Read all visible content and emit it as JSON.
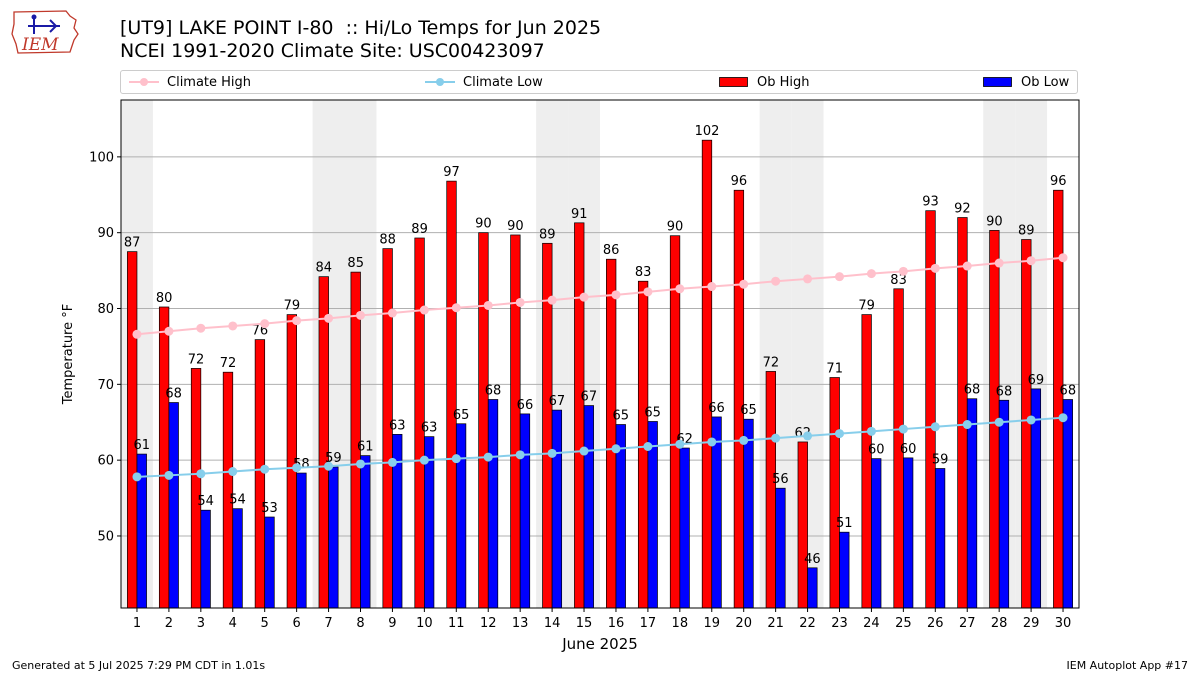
{
  "header": {
    "title_line1": "[UT9] LAKE POINT I-80  :: Hi/Lo Temps for Jun 2025",
    "title_line2": "NCEI 1991-2020 Climate Site: USC00423097",
    "logo_text": "IEM"
  },
  "legend": {
    "items": [
      {
        "label": "Climate High",
        "color": "#ffc0cb",
        "kind": "line"
      },
      {
        "label": "Climate Low",
        "color": "#87ceeb",
        "kind": "line"
      },
      {
        "label": "Ob High",
        "color": "#ff0000",
        "kind": "bar"
      },
      {
        "label": "Ob Low",
        "color": "#0000ff",
        "kind": "bar"
      }
    ]
  },
  "footer": {
    "left": "Generated at 5 Jul 2025 7:29 PM CDT in 1.01s",
    "right": "IEM Autoplot App #17"
  },
  "chart_data": {
    "type": "bar",
    "xlabel": "June 2025",
    "ylabel": "Temperature °F",
    "ylim": [
      40.5,
      107.5
    ],
    "yticks": [
      50,
      60,
      70,
      80,
      90,
      100
    ],
    "grid": "horizontal",
    "legend_position": "top",
    "weekend_shading_days": [
      1,
      7,
      8,
      14,
      15,
      21,
      22,
      28,
      29
    ],
    "categories": [
      1,
      2,
      3,
      4,
      5,
      6,
      7,
      8,
      9,
      10,
      11,
      12,
      13,
      14,
      15,
      16,
      17,
      18,
      19,
      20,
      21,
      22,
      23,
      24,
      25,
      26,
      27,
      28,
      29,
      30
    ],
    "series": [
      {
        "name": "Ob High",
        "type": "bar",
        "color": "#ff0000",
        "values": [
          87,
          80,
          72,
          72,
          76,
          79,
          84,
          85,
          88,
          89,
          97,
          90,
          90,
          89,
          91,
          86,
          83,
          90,
          102,
          96,
          72,
          62,
          71,
          79,
          83,
          93,
          92,
          90,
          89,
          96
        ],
        "bar_tops": [
          87.5,
          80.2,
          72.1,
          71.6,
          75.9,
          79.2,
          84.2,
          84.8,
          87.9,
          89.3,
          96.8,
          90.0,
          89.7,
          88.6,
          91.3,
          86.5,
          83.6,
          89.6,
          102.2,
          95.6,
          71.7,
          62.4,
          70.9,
          79.2,
          82.6,
          92.9,
          92.0,
          90.3,
          89.1,
          95.6
        ]
      },
      {
        "name": "Ob Low",
        "type": "bar",
        "color": "#0000ff",
        "values": [
          61,
          68,
          54,
          54,
          53,
          58,
          59,
          61,
          63,
          63,
          65,
          68,
          66,
          67,
          67,
          65,
          65,
          62,
          66,
          65,
          56,
          46,
          51,
          60,
          60,
          59,
          68,
          68,
          69,
          68
        ],
        "bar_tops": [
          60.8,
          67.6,
          53.4,
          53.6,
          52.5,
          58.3,
          59.1,
          60.6,
          63.4,
          63.1,
          64.8,
          68.0,
          66.1,
          66.6,
          67.2,
          64.7,
          65.1,
          61.6,
          65.7,
          65.4,
          56.3,
          45.8,
          50.5,
          60.2,
          60.3,
          58.9,
          68.1,
          67.9,
          69.4,
          68.0
        ]
      },
      {
        "name": "Climate High",
        "type": "line",
        "color": "#ffc0cb",
        "values": [
          76.6,
          77.0,
          77.4,
          77.7,
          78.0,
          78.4,
          78.7,
          79.1,
          79.4,
          79.8,
          80.1,
          80.4,
          80.8,
          81.1,
          81.5,
          81.8,
          82.2,
          82.6,
          82.9,
          83.2,
          83.6,
          83.9,
          84.2,
          84.6,
          84.9,
          85.3,
          85.6,
          86.0,
          86.3,
          86.7
        ]
      },
      {
        "name": "Climate Low",
        "type": "line",
        "color": "#87ceeb",
        "values": [
          57.8,
          58.0,
          58.2,
          58.5,
          58.8,
          59.0,
          59.2,
          59.5,
          59.7,
          60.0,
          60.2,
          60.4,
          60.7,
          60.9,
          61.2,
          61.5,
          61.8,
          62.1,
          62.4,
          62.6,
          62.9,
          63.2,
          63.5,
          63.8,
          64.1,
          64.4,
          64.7,
          65.0,
          65.3,
          65.6
        ]
      }
    ]
  }
}
